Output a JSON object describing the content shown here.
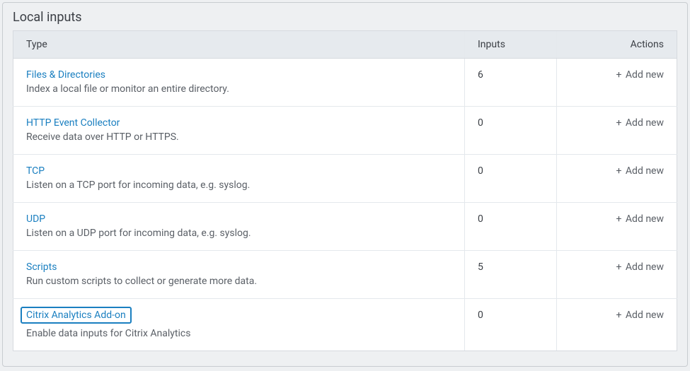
{
  "panel": {
    "title": "Local inputs"
  },
  "columns": {
    "type": "Type",
    "inputs": "Inputs",
    "actions": "Actions"
  },
  "add_new_label": "Add new",
  "rows": [
    {
      "name": "Files & Directories",
      "desc": "Index a local file or monitor an entire directory.",
      "count": "6",
      "highlight": false
    },
    {
      "name": "HTTP Event Collector",
      "desc": "Receive data over HTTP or HTTPS.",
      "count": "0",
      "highlight": false
    },
    {
      "name": "TCP",
      "desc": "Listen on a TCP port for incoming data, e.g. syslog.",
      "count": "0",
      "highlight": false
    },
    {
      "name": "UDP",
      "desc": "Listen on a UDP port for incoming data, e.g. syslog.",
      "count": "0",
      "highlight": false
    },
    {
      "name": "Scripts",
      "desc": "Run custom scripts to collect or generate more data.",
      "count": "5",
      "highlight": false
    },
    {
      "name": "Citrix Analytics Add-on",
      "desc": "Enable data inputs for Citrix Analytics",
      "count": "0",
      "highlight": true
    }
  ],
  "colors": {
    "link": "#1a7fc0",
    "panel_bg": "#eef0f2",
    "header_bg": "#e6eaee",
    "border": "#d6dadf",
    "row_border": "#e4e8ec",
    "text": "#3b3f45",
    "muted_text": "#5a5f66"
  }
}
